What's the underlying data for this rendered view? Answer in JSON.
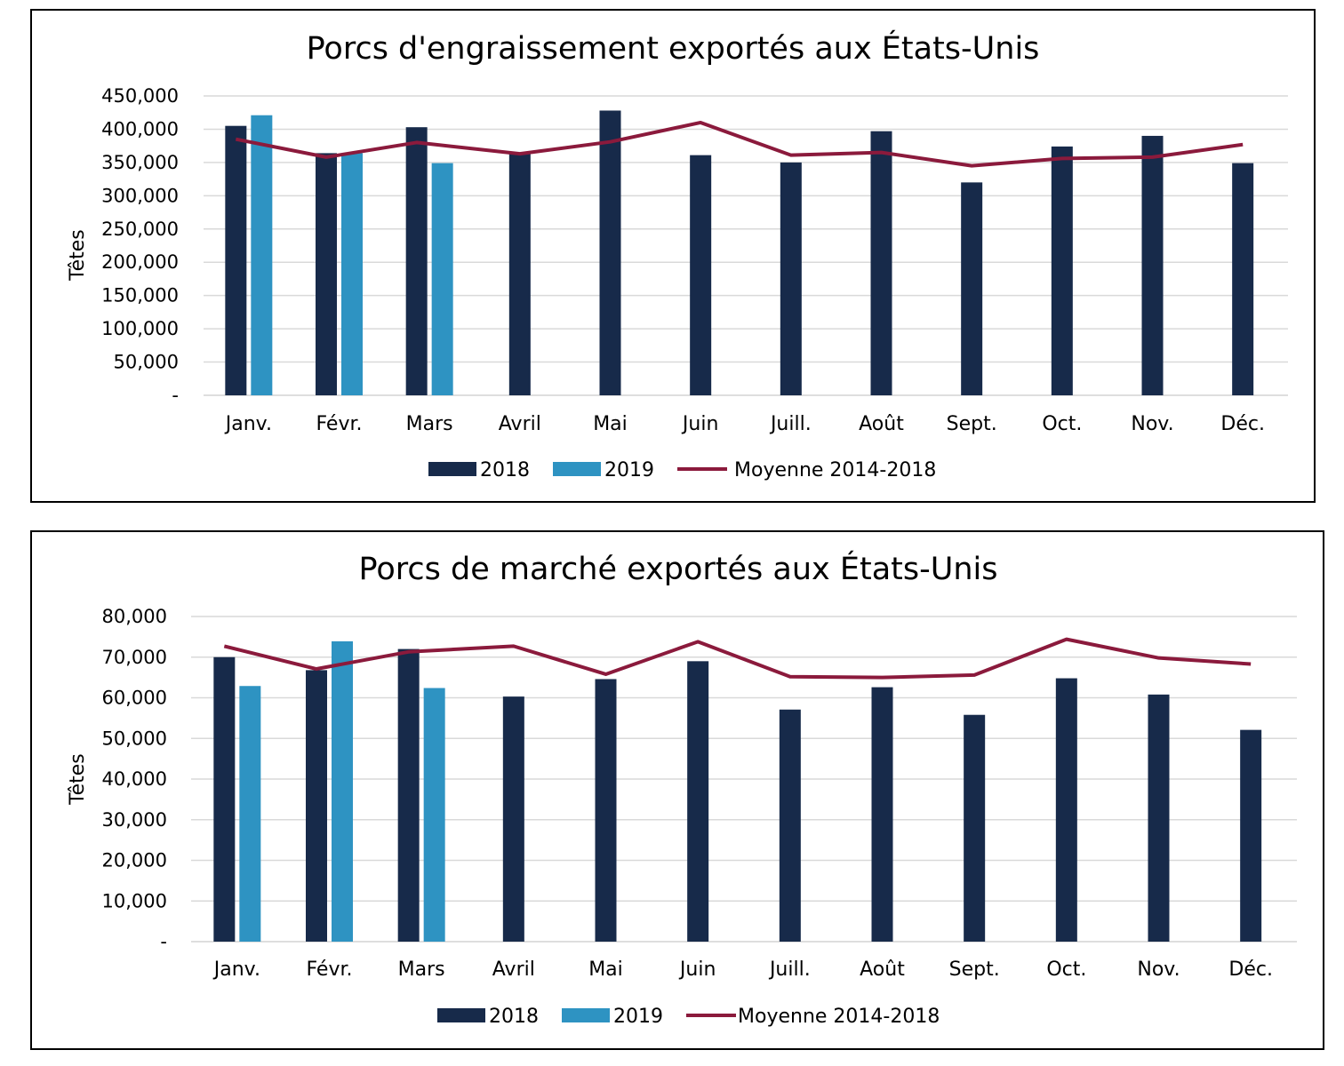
{
  "chart_data": [
    {
      "type": "bar",
      "title": "Porcs d'engraissement exportés aux États-Unis",
      "xlabel": "",
      "ylabel": "Têtes",
      "ylim": [
        0,
        450000
      ],
      "yticks": [
        "-",
        "50,000",
        "100,000",
        "150,000",
        "200,000",
        "250,000",
        "300,000",
        "350,000",
        "400,000",
        "450,000"
      ],
      "categories": [
        "Janv.",
        "Févr.",
        "Mars",
        "Avril",
        "Mai",
        "Juin",
        "Juill.",
        "Août",
        "Sept.",
        "Oct.",
        "Nov.",
        "Déc."
      ],
      "grid": true,
      "legend_position": "bottom",
      "series": [
        {
          "name": "2018",
          "kind": "bar",
          "color": "#172a4a",
          "values": [
            405000,
            364000,
            403000,
            364000,
            428000,
            361000,
            350000,
            397000,
            320000,
            374000,
            390000,
            349000
          ]
        },
        {
          "name": "2019",
          "kind": "bar",
          "color": "#2e93c2",
          "values": [
            421000,
            364000,
            349000,
            null,
            null,
            null,
            null,
            null,
            null,
            null,
            null,
            null
          ]
        },
        {
          "name": "Moyenne 2014-2018",
          "kind": "line",
          "color": "#8b1a3c",
          "values": [
            385000,
            358000,
            380000,
            363000,
            381000,
            410000,
            361000,
            365000,
            345000,
            356000,
            358000,
            377000
          ]
        }
      ]
    },
    {
      "type": "bar",
      "title": "Porcs de marché exportés aux États-Unis",
      "xlabel": "",
      "ylabel": "Têtes",
      "ylim": [
        0,
        80000
      ],
      "yticks": [
        "-",
        "10,000",
        "20,000",
        "30,000",
        "40,000",
        "50,000",
        "60,000",
        "70,000",
        "80,000"
      ],
      "categories": [
        "Janv.",
        "Févr.",
        "Mars",
        "Avril",
        "Mai",
        "Juin",
        "Juill.",
        "Août",
        "Sept.",
        "Oct.",
        "Nov.",
        "Déc."
      ],
      "grid": true,
      "legend_position": "bottom",
      "series": [
        {
          "name": "2018",
          "kind": "bar",
          "color": "#172a4a",
          "values": [
            70000,
            66800,
            72000,
            60300,
            64600,
            69000,
            57100,
            62600,
            55800,
            64800,
            60800,
            52100
          ]
        },
        {
          "name": "2019",
          "kind": "bar",
          "color": "#2e93c2",
          "values": [
            62900,
            73900,
            62400,
            null,
            null,
            null,
            null,
            null,
            null,
            null,
            null,
            null
          ]
        },
        {
          "name": "Moyenne 2014-2018",
          "kind": "line",
          "color": "#8b1a3c",
          "values": [
            72700,
            67100,
            71300,
            72700,
            65800,
            73800,
            65200,
            65000,
            65600,
            74400,
            69800,
            68300
          ]
        }
      ]
    }
  ]
}
